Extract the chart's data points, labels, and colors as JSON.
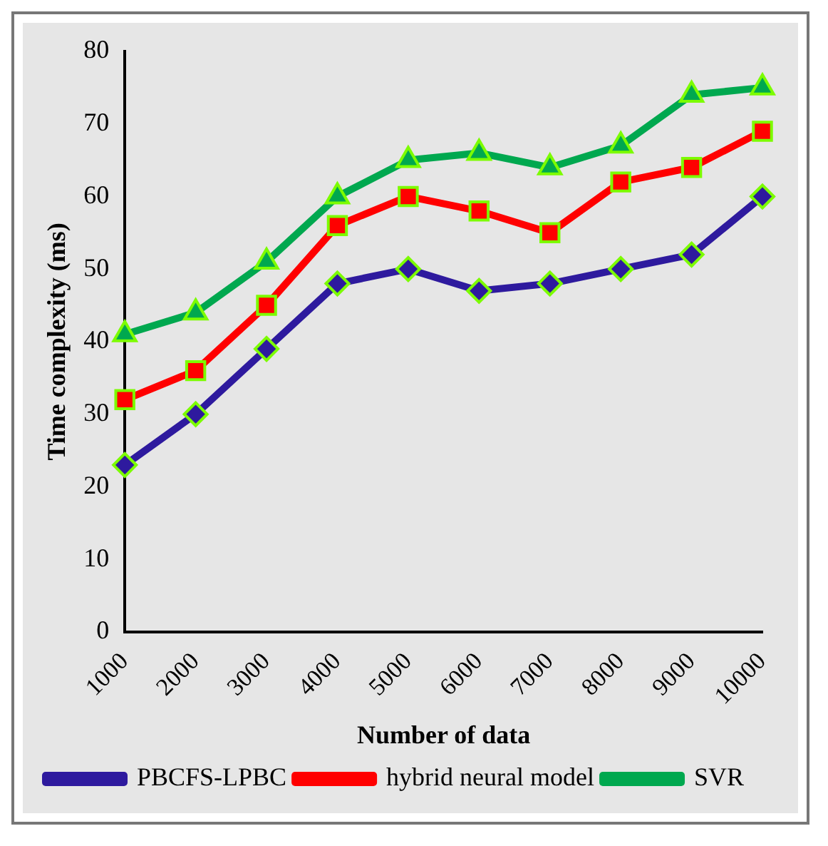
{
  "chart_data": {
    "type": "line",
    "xlabel": "Number of data",
    "ylabel": "Time complexity (ms)",
    "categories": [
      "1000",
      "2000",
      "3000",
      "4000",
      "5000",
      "6000",
      "7000",
      "8000",
      "9000",
      "10000"
    ],
    "series": [
      {
        "name": "PBCFS-LPBC",
        "color": "#2e1a9e",
        "marker": "diamond",
        "values": [
          23,
          30,
          39,
          48,
          50,
          47,
          48,
          50,
          52,
          60
        ]
      },
      {
        "name": "hybrid neural model",
        "color": "#ff0000",
        "marker": "square",
        "values": [
          32,
          36,
          45,
          56,
          60,
          58,
          55,
          62,
          64,
          69
        ]
      },
      {
        "name": "SVR",
        "color": "#00a84f",
        "marker": "triangle",
        "values": [
          41,
          44,
          51,
          60,
          65,
          66,
          64,
          67,
          74,
          75
        ]
      }
    ],
    "ylim": [
      0,
      80
    ],
    "yticks": [
      0,
      10,
      20,
      30,
      40,
      50,
      60,
      70,
      80
    ],
    "grid": false,
    "legend": "bottom",
    "line_style": "solid"
  }
}
